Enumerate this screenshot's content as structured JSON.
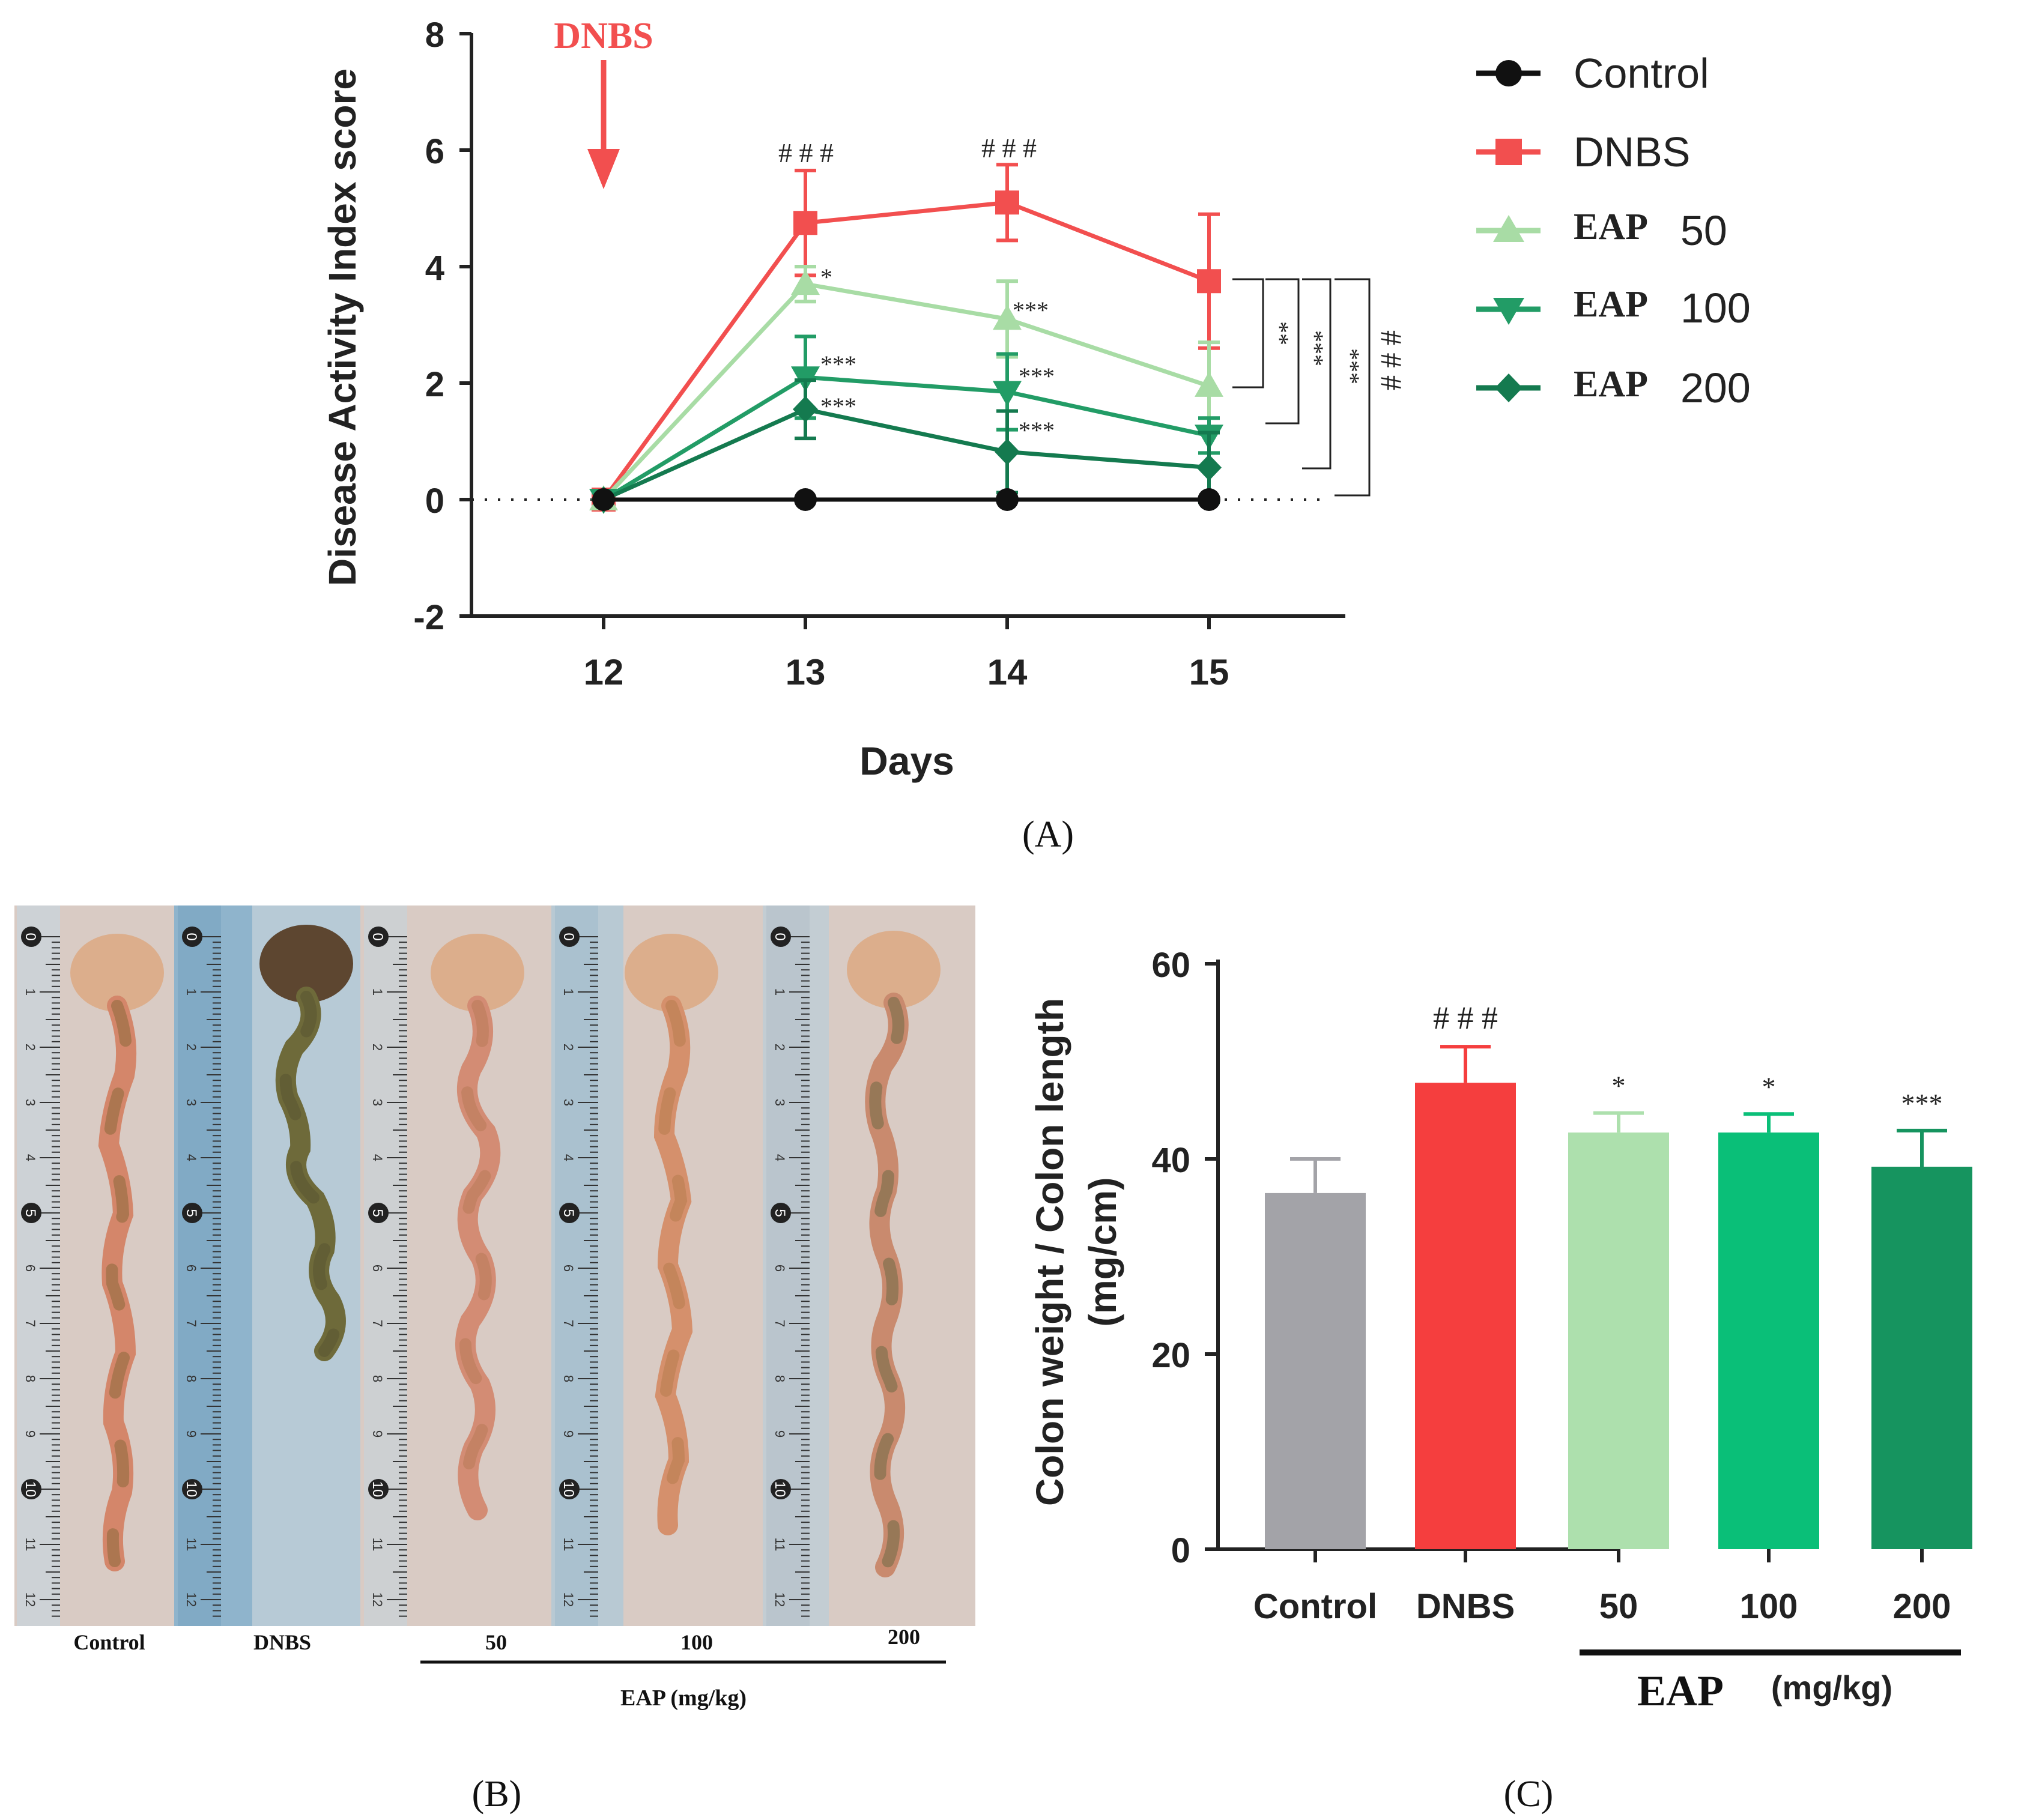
{
  "panel_a": {
    "caption": "(A)",
    "arrow_label": "DNBS",
    "legend": {
      "control": "Control",
      "dnbs": "DNBS",
      "eap_prefix": "EAP",
      "eap50": "50",
      "eap100": "100",
      "eap200": "200"
    },
    "annotations": {
      "hash13": "# # #",
      "hash14": "# # #",
      "d13_eap50": "*",
      "d13_eap100": "***",
      "d13_eap200": "***",
      "d14_eap50": "***",
      "d14_eap100": "***",
      "d14_eap200": "***",
      "bracket_eap50": "**",
      "bracket_eap100": "***",
      "bracket_eap200": "***",
      "bracket_control": "# # #"
    }
  },
  "panel_b": {
    "caption": "(B)",
    "labels": [
      "Control",
      "DNBS",
      "50",
      "100",
      "200"
    ],
    "group_label": "EAP (mg/kg)",
    "ruler_ticks": [
      "0",
      "1",
      "2",
      "3",
      "4",
      "5",
      "6",
      "7",
      "8",
      "9",
      "10",
      "11",
      "12"
    ]
  },
  "panel_c": {
    "caption": "(C)",
    "group_label": "EAP",
    "group_unit": "(mg/kg)",
    "annotations": [
      "",
      "# # #",
      "*",
      "*",
      "***"
    ]
  },
  "chart_data": [
    {
      "type": "line",
      "title": "",
      "xlabel": "Days",
      "ylabel": "Disease Activity Index score",
      "x": [
        12,
        13,
        14,
        15
      ],
      "xticks": [
        "12",
        "13",
        "14",
        "15"
      ],
      "yticks": [
        "-2",
        "0",
        "2",
        "4",
        "6",
        "8"
      ],
      "ylim": [
        -2,
        8
      ],
      "series": [
        {
          "name": "Control",
          "color": "#111111",
          "marker": "circle",
          "values": [
            0,
            0,
            0,
            0
          ],
          "errors": [
            0,
            0,
            0,
            0
          ]
        },
        {
          "name": "DNBS",
          "color": "#f24f4f",
          "marker": "square",
          "values": [
            0,
            4.75,
            5.1,
            3.75
          ],
          "errors": [
            0,
            0.9,
            0.65,
            1.15
          ]
        },
        {
          "name": "EAP 50",
          "color": "#a8dca5",
          "marker": "triangle-up",
          "values": [
            0,
            3.7,
            3.1,
            1.95
          ],
          "errors": [
            0,
            0.3,
            0.65,
            0.75
          ]
        },
        {
          "name": "EAP 100",
          "color": "#229c66",
          "marker": "triangle-down",
          "values": [
            0,
            2.1,
            1.85,
            1.1
          ],
          "errors": [
            0,
            0.7,
            0.65,
            0.3
          ]
        },
        {
          "name": "EAP 200",
          "color": "#147a4f",
          "marker": "diamond",
          "values": [
            0,
            1.55,
            0.82,
            0.55
          ],
          "errors": [
            0,
            0.5,
            0.7,
            0.6
          ]
        }
      ]
    },
    {
      "type": "bar",
      "title": "",
      "xlabel": "",
      "ylabel": "Colon weight / Colon length",
      "ylabel2": "(mg/cm)",
      "categories": [
        "Control",
        "DNBS",
        "50",
        "100",
        "200"
      ],
      "values": [
        36.5,
        47.8,
        42.7,
        42.7,
        39.2
      ],
      "errors": [
        3.5,
        3.7,
        2.0,
        1.9,
        3.7
      ],
      "colors": [
        "#a3a3a8",
        "#f53e3e",
        "#ade0ad",
        "#0abf78",
        "#16945f"
      ],
      "yticks": [
        "0",
        "20",
        "40",
        "60"
      ],
      "ylim": [
        0,
        60
      ]
    }
  ]
}
